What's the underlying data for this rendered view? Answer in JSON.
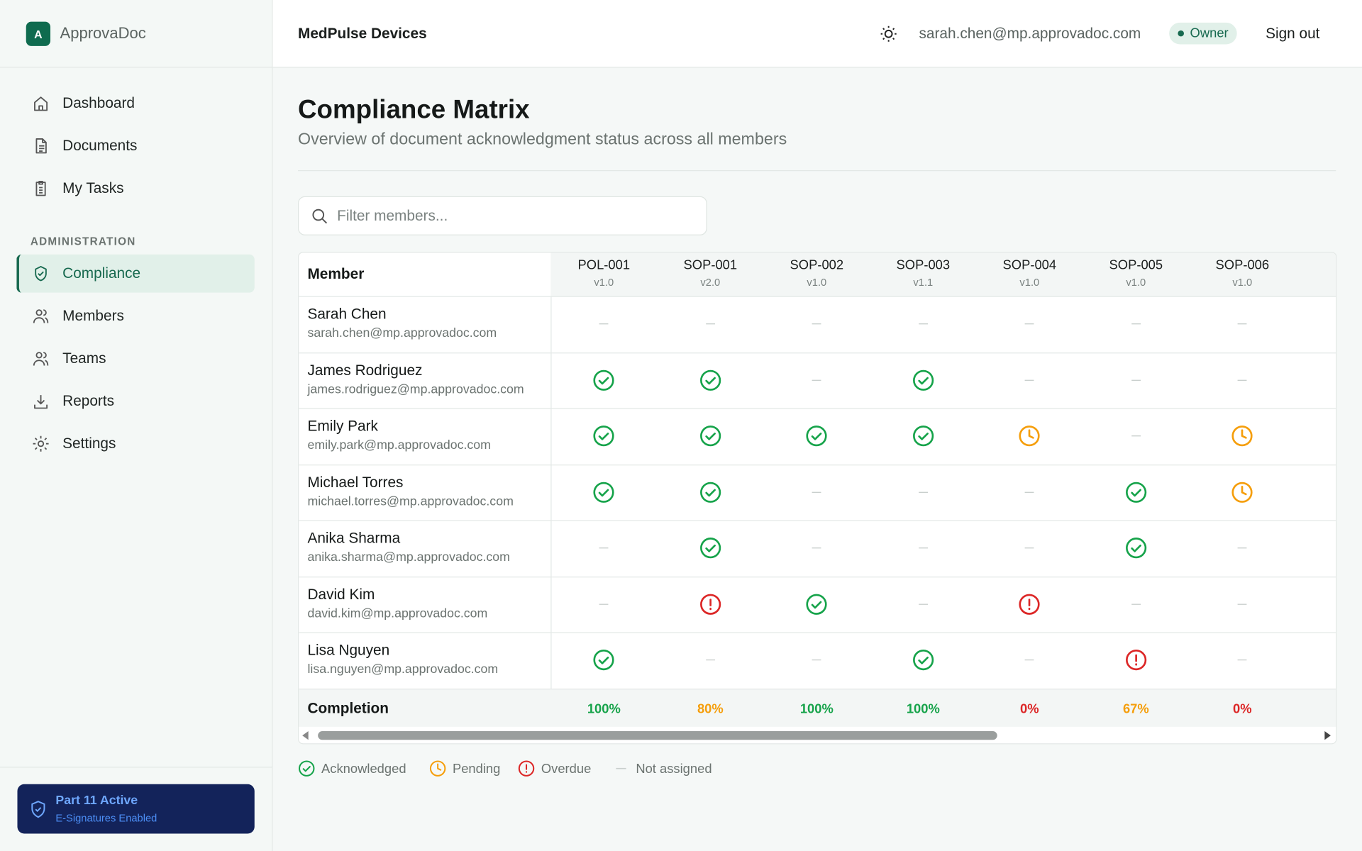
{
  "sidebar": {
    "brand": {
      "logo": "A",
      "name": "ApprovaDoc"
    },
    "nav": [
      {
        "label": "Dashboard"
      },
      {
        "label": "Documents"
      },
      {
        "label": "My Tasks"
      }
    ],
    "section_label": "ADMINISTRATION",
    "admin_nav": [
      {
        "label": "Compliance",
        "active": true
      },
      {
        "label": "Members"
      },
      {
        "label": "Teams"
      },
      {
        "label": "Reports"
      },
      {
        "label": "Settings"
      }
    ],
    "badge": {
      "title": "Part 11 Active",
      "subtitle": "E-Signatures Enabled"
    }
  },
  "header": {
    "org": "MedPulse Devices",
    "email": "sarah.chen@mp.approvadoc.com",
    "role": "Owner",
    "sign_out": "Sign out"
  },
  "page": {
    "title": "Compliance Matrix",
    "subtitle": "Overview of document acknowledgment status across all members",
    "filter_placeholder": "Filter members..."
  },
  "table": {
    "member_header": "Member",
    "columns": [
      {
        "code": "POL-001",
        "version": "v1.0"
      },
      {
        "code": "SOP-001",
        "version": "v2.0"
      },
      {
        "code": "SOP-002",
        "version": "v1.0"
      },
      {
        "code": "SOP-003",
        "version": "v1.1"
      },
      {
        "code": "SOP-004",
        "version": "v1.0"
      },
      {
        "code": "SOP-005",
        "version": "v1.0"
      },
      {
        "code": "SOP-006",
        "version": "v1.0"
      }
    ],
    "rows": [
      {
        "name": "Sarah Chen",
        "email": "sarah.chen@mp.approvadoc.com",
        "statuses": [
          "none",
          "none",
          "none",
          "none",
          "none",
          "none",
          "none"
        ]
      },
      {
        "name": "James Rodriguez",
        "email": "james.rodriguez@mp.approvadoc.com",
        "statuses": [
          "acknowledged",
          "acknowledged",
          "none",
          "acknowledged",
          "none",
          "none",
          "none"
        ]
      },
      {
        "name": "Emily Park",
        "email": "emily.park@mp.approvadoc.com",
        "statuses": [
          "acknowledged",
          "acknowledged",
          "acknowledged",
          "acknowledged",
          "pending",
          "none",
          "pending"
        ]
      },
      {
        "name": "Michael Torres",
        "email": "michael.torres@mp.approvadoc.com",
        "statuses": [
          "acknowledged",
          "acknowledged",
          "none",
          "none",
          "none",
          "acknowledged",
          "pending"
        ]
      },
      {
        "name": "Anika Sharma",
        "email": "anika.sharma@mp.approvadoc.com",
        "statuses": [
          "none",
          "acknowledged",
          "none",
          "none",
          "none",
          "acknowledged",
          "none"
        ]
      },
      {
        "name": "David Kim",
        "email": "david.kim@mp.approvadoc.com",
        "statuses": [
          "none",
          "overdue",
          "acknowledged",
          "none",
          "overdue",
          "none",
          "none"
        ]
      },
      {
        "name": "Lisa Nguyen",
        "email": "lisa.nguyen@mp.approvadoc.com",
        "statuses": [
          "acknowledged",
          "none",
          "none",
          "acknowledged",
          "none",
          "overdue",
          "none"
        ]
      }
    ],
    "completion_label": "Completion",
    "completion": [
      "100%",
      "80%",
      "100%",
      "100%",
      "0%",
      "67%",
      "0%"
    ]
  },
  "legend": [
    {
      "status": "acknowledged",
      "label": "Acknowledged"
    },
    {
      "status": "pending",
      "label": "Pending"
    },
    {
      "status": "overdue",
      "label": "Overdue"
    },
    {
      "status": "none",
      "label": "Not assigned"
    }
  ]
}
